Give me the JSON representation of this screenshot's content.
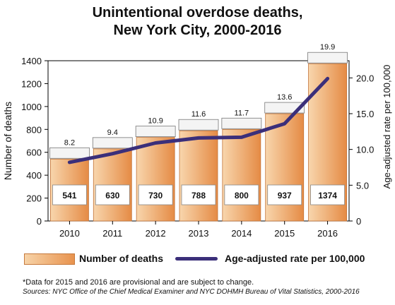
{
  "title_line1": "Unintentional overdose deaths,",
  "title_line2": "New York City, 2000-2016",
  "legend": {
    "bars": "Number of deaths",
    "line": "Age-adjusted rate per 100,000"
  },
  "footnote": "*Data for 2015 and 2016 are provisional and are subject to change.",
  "sources": "Sources: NYC Office of the Chief Medical Examiner and NYC DOHMH Bureau of Vital Statistics, 2000-2016",
  "colors": {
    "bar_light": "#f8d6ad",
    "bar_dark": "#e58b45",
    "bar_edge": "#c27236",
    "line": "#3b2f7a"
  },
  "chart_data": {
    "type": "bar",
    "categories": [
      "2010",
      "2011",
      "2012",
      "2013",
      "2014",
      "2015",
      "2016"
    ],
    "series": [
      {
        "name": "Number of deaths",
        "type": "bar",
        "axis": "left",
        "values": [
          541,
          630,
          730,
          788,
          800,
          937,
          1374
        ]
      },
      {
        "name": "Age-adjusted rate per 100,000",
        "type": "line",
        "axis": "right",
        "values": [
          8.2,
          9.4,
          10.9,
          11.6,
          11.7,
          13.6,
          19.9
        ]
      }
    ],
    "ylabel": "Number of deaths",
    "ylabel_right": "Age-adjusted rate per 100,000",
    "ylim": [
      0,
      1400
    ],
    "ylim_right": [
      0,
      22.4
    ],
    "yticks": [
      "0",
      "200",
      "400",
      "600",
      "800",
      "1000",
      "1200",
      "1400"
    ],
    "yticks_right": [
      "0",
      "5.0",
      "10.0",
      "15.0",
      "20.0"
    ],
    "grid": false
  }
}
